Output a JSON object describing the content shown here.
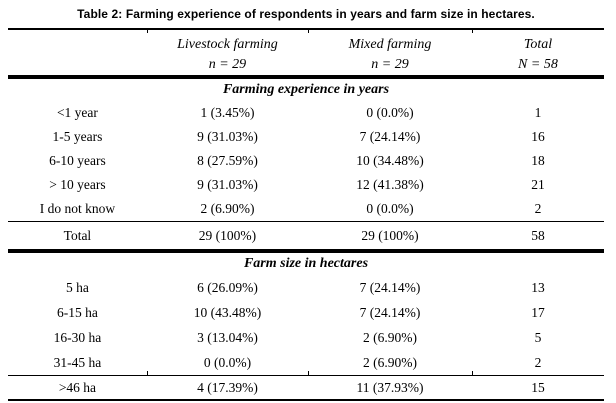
{
  "title": "Table 2: Farming experience of respondents in years and farm size in hectares.",
  "columns": [
    {
      "label": "",
      "sub": ""
    },
    {
      "label": "Livestock farming",
      "sub": "n = 29"
    },
    {
      "label": "Mixed farming",
      "sub": "n = 29"
    },
    {
      "label": "Total",
      "sub": "N = 58"
    }
  ],
  "sections": [
    {
      "header": "Farming experience in years",
      "rows": [
        [
          "<1 year",
          "1 (3.45%)",
          "0 (0.0%)",
          "1"
        ],
        [
          "1-5 years",
          "9 (31.03%)",
          "7 (24.14%)",
          "16"
        ],
        [
          "6-10 years",
          "8 (27.59%)",
          "10 (34.48%)",
          "18"
        ],
        [
          "> 10 years",
          "9 (31.03%)",
          "12 (41.38%)",
          "21"
        ],
        [
          "I do not know",
          "2 (6.90%)",
          "0 (0.0%)",
          "2"
        ]
      ],
      "total_row": [
        "Total",
        "29 (100%)",
        "29 (100%)",
        "58"
      ]
    },
    {
      "header": "Farm size in hectares",
      "rows": [
        [
          "5 ha",
          "6 (26.09%)",
          "7 (24.14%)",
          "13"
        ],
        [
          "6-15 ha",
          "10 (43.48%)",
          "7 (24.14%)",
          "17"
        ],
        [
          "16-30 ha",
          "3 (13.04%)",
          "2 (6.90%)",
          "5"
        ],
        [
          "31-45 ha",
          "0 (0.0%)",
          "2 (6.90%)",
          "2"
        ]
      ],
      "total_row": [
        ">46 ha",
        "4 (17.39%)",
        "11 (37.93%)",
        "15"
      ]
    }
  ],
  "colors": {
    "text": "#000000",
    "rule": "#000000",
    "background": "#ffffff"
  }
}
